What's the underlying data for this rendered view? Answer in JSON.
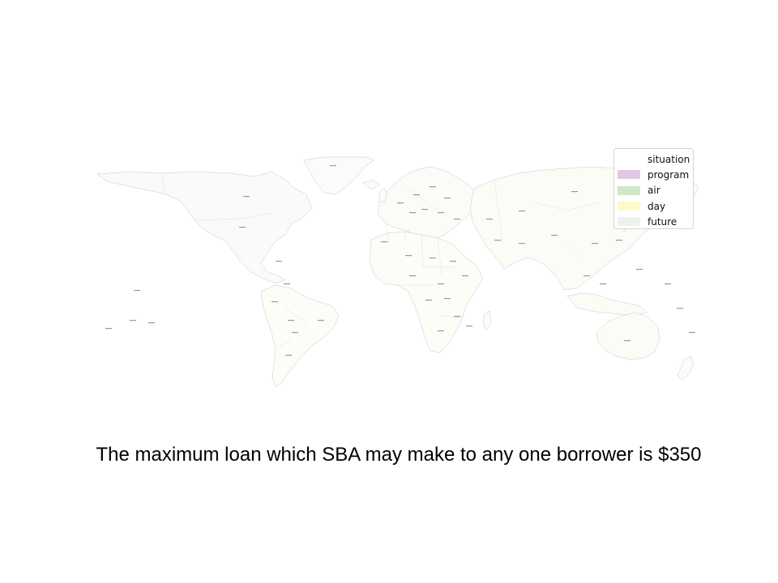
{
  "map": {
    "legend": {
      "entries": [
        {
          "label": "situation",
          "color": "#ffffff"
        },
        {
          "label": "program",
          "color": "#dfc9e2"
        },
        {
          "label": "air",
          "color": "#cde9c6"
        },
        {
          "label": "day",
          "color": "#fdfac8"
        },
        {
          "label": "future",
          "color": "#efefef"
        }
      ]
    },
    "region_fills": {
      "north_america": "#fbf9fc",
      "greenland": "#fbfbfb",
      "south_america": "#fdfcf7",
      "europe": "#fbfbf8",
      "africa": "#fdfcf6",
      "asia": "#fcfcf7",
      "oceania": "#fcfcf7"
    }
  },
  "caption": {
    "text": "The maximum loan which SBA may make to any one borrower is $350"
  }
}
